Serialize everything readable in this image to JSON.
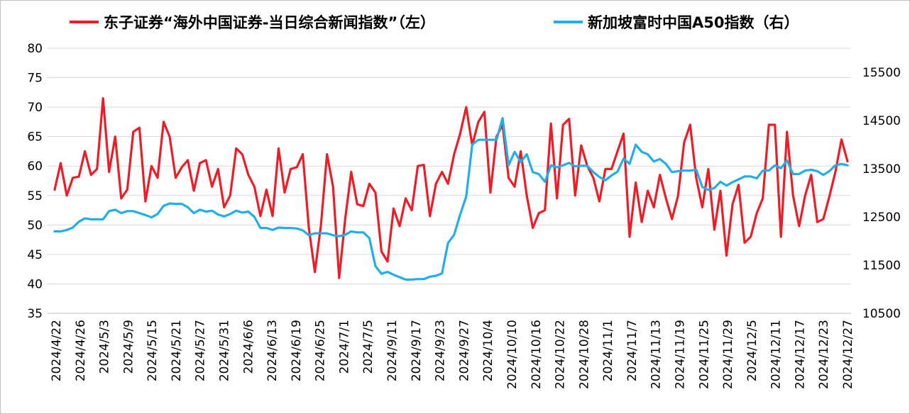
{
  "chart_data": {
    "type": "line",
    "grid": true,
    "legend_placement": "top",
    "axes": {
      "left": {
        "min": 35,
        "max": 80,
        "ticks": [
          "35",
          "40",
          "45",
          "50",
          "55",
          "60",
          "65",
          "70",
          "75",
          "80"
        ]
      },
      "right": {
        "min": 10500,
        "max": 16000,
        "ticks": [
          "10500",
          "11500",
          "12500",
          "13500",
          "14500",
          "15500"
        ]
      }
    },
    "x_tick_labels": [
      "2024/4/22",
      "2024/4/26",
      "2024/5/3",
      "2024/5/9",
      "2024/5/15",
      "2024/5/21",
      "2024/5/27",
      "2024/5/31",
      "2024/6/6",
      "2024/6/13",
      "2024/6/19",
      "2024/6/25",
      "2024/7/1",
      "2024/7/5",
      "2024/9/11",
      "2024/9/17",
      "2024/9/23",
      "2024/9/27",
      "2024/10/4",
      "2024/10/10",
      "2024/10/16",
      "2024/10/22",
      "2024/10/28",
      "2024/11/1",
      "2024/11/7",
      "2024/11/13",
      "2024/11/19",
      "2024/11/25",
      "2024/11/29",
      "2024/12/5",
      "2024/12/11",
      "2024/12/17",
      "2024/12/23",
      "2024/12/27"
    ],
    "series": [
      {
        "name": "东子证券“海外中国证券-当日综合新闻指数”（左）",
        "axis": "left",
        "color": "#ee1c25",
        "values": [
          56,
          60.5,
          55,
          58,
          58.2,
          62.5,
          58.5,
          59.5,
          71.5,
          59,
          65,
          54.5,
          56,
          65.8,
          66.5,
          54,
          60,
          58,
          67.5,
          65,
          58,
          59.8,
          61,
          55.8,
          60.5,
          61,
          56.5,
          59.5,
          53,
          55,
          63,
          62,
          58.5,
          56.5,
          51.5,
          56,
          51.5,
          63,
          55.5,
          59.5,
          59.8,
          62,
          49.5,
          42,
          50,
          62,
          56.5,
          41,
          51,
          59,
          53.5,
          53.2,
          57,
          55.5,
          45.5,
          43.8,
          52.8,
          49.8,
          54.5,
          52.5,
          60,
          60.2,
          51.5,
          57,
          59,
          57,
          62,
          65.5,
          70,
          63.5,
          67.5,
          69.2,
          55.5,
          65,
          67,
          58,
          56.5,
          62.5,
          55,
          49.5,
          52,
          52.5,
          67.2,
          54.5,
          67,
          68,
          55,
          63.5,
          60,
          58,
          54,
          59.5,
          59.5,
          62.5,
          65.5,
          48,
          57.2,
          50.5,
          55.8,
          53,
          58.5,
          54.5,
          51,
          55,
          64,
          67,
          58,
          53,
          59.5,
          49.2,
          55.8,
          44.8,
          53.5,
          56.8,
          47,
          48,
          52,
          54.5,
          67,
          67,
          48,
          65.8,
          55,
          49.8,
          55,
          58.5,
          50.5,
          51,
          54.8,
          59,
          64.5,
          60.8
        ]
      },
      {
        "name": "新加坡富时中国A50指数（右）",
        "axis": "right",
        "color": "#22aee8",
        "values": [
          12200,
          12200,
          12230,
          12280,
          12400,
          12470,
          12450,
          12450,
          12450,
          12620,
          12650,
          12580,
          12620,
          12620,
          12580,
          12540,
          12490,
          12560,
          12730,
          12780,
          12770,
          12770,
          12700,
          12580,
          12650,
          12610,
          12630,
          12550,
          12510,
          12560,
          12630,
          12590,
          12610,
          12500,
          12270,
          12270,
          12230,
          12280,
          12270,
          12270,
          12260,
          12220,
          12120,
          12160,
          12160,
          12160,
          12120,
          12100,
          12130,
          12200,
          12180,
          12180,
          12060,
          11480,
          11320,
          11360,
          11300,
          11250,
          11200,
          11200,
          11210,
          11210,
          11260,
          11280,
          11330,
          11960,
          12130,
          12550,
          12920,
          14000,
          14100,
          14100,
          14100,
          14100,
          14550,
          13570,
          13850,
          13640,
          13800,
          13430,
          13390,
          13230,
          13570,
          13530,
          13570,
          13620,
          13550,
          13560,
          13560,
          13430,
          13330,
          13260,
          13360,
          13440,
          13710,
          13600,
          14000,
          13850,
          13800,
          13650,
          13700,
          13600,
          13430,
          13450,
          13460,
          13460,
          13480,
          13120,
          13060,
          13100,
          13230,
          13150,
          13220,
          13280,
          13340,
          13340,
          13300,
          13460,
          13460,
          13570,
          13510,
          13670,
          13390,
          13390,
          13460,
          13480,
          13450,
          13370,
          13450,
          13570,
          13600,
          13570
        ]
      }
    ]
  }
}
